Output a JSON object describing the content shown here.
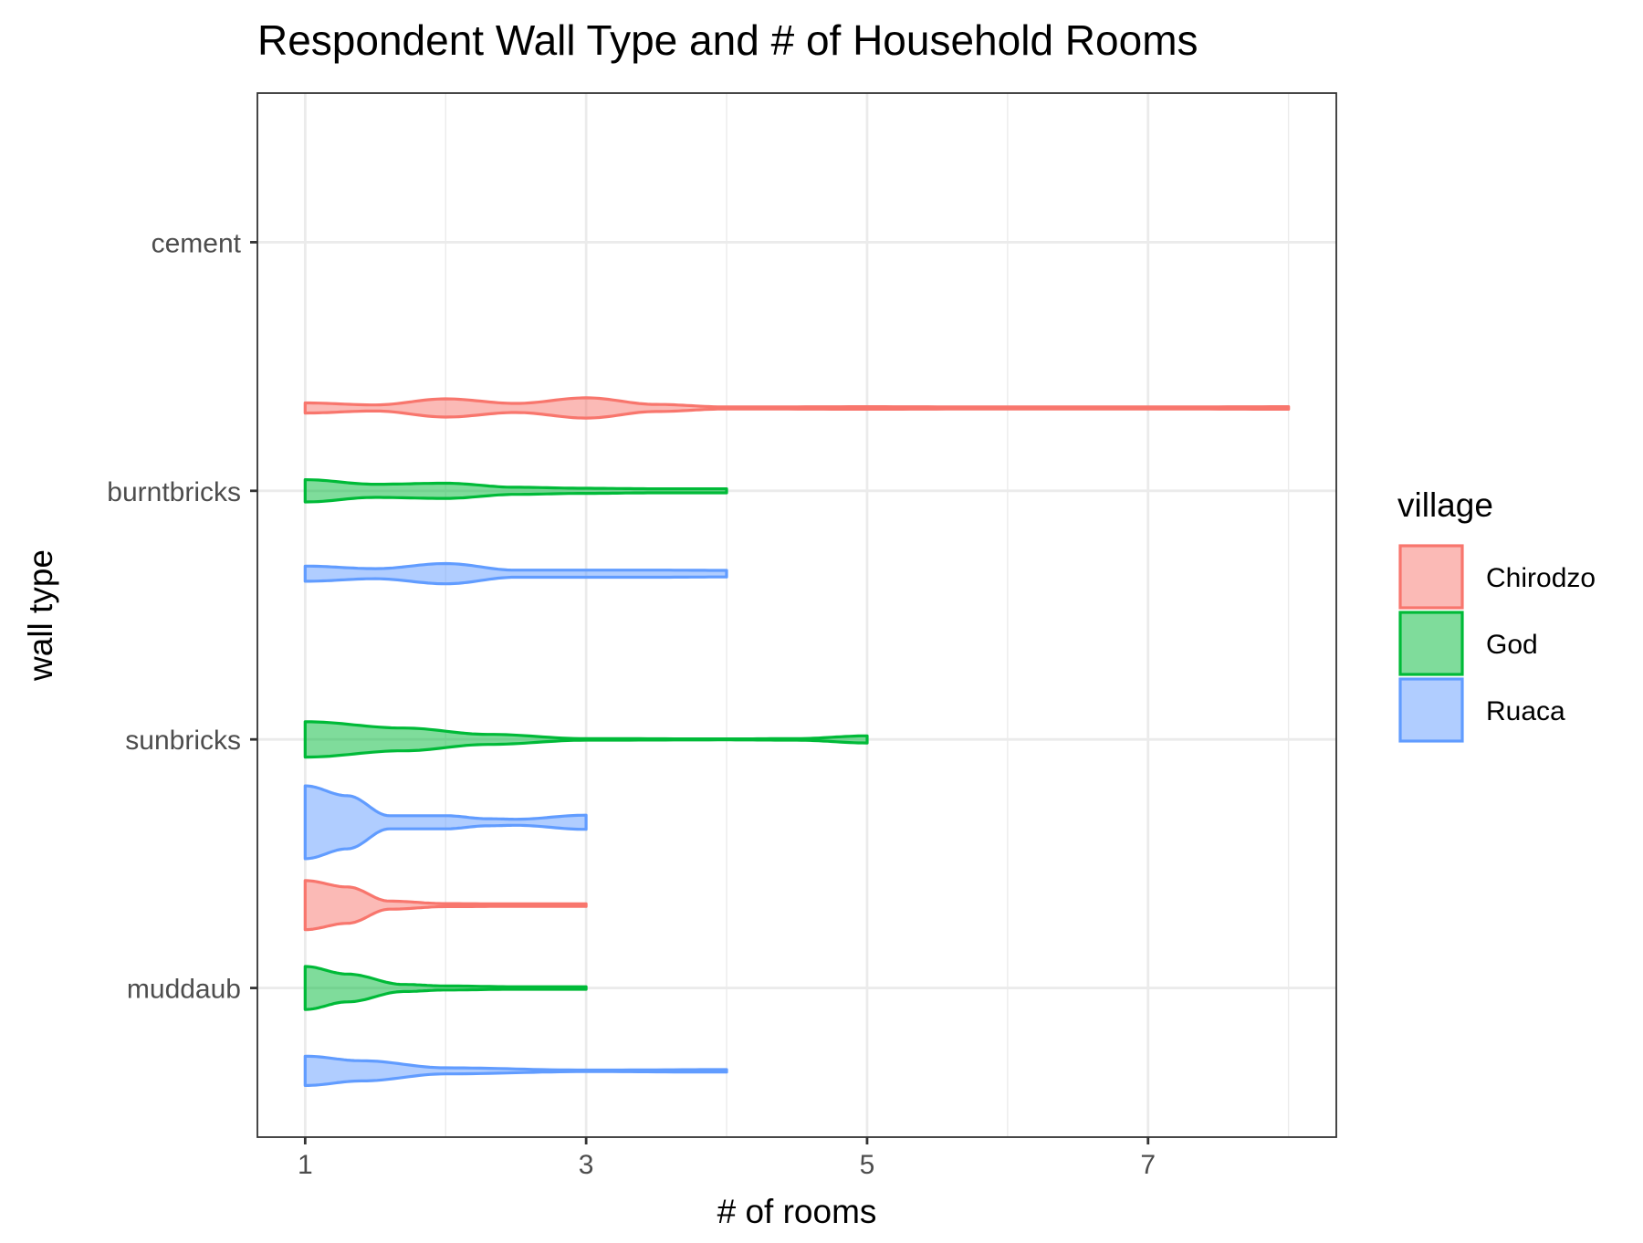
{
  "chart_data": {
    "type": "violin",
    "orientation": "horizontal",
    "title": "Respondent Wall Type and # of Household Rooms",
    "xlabel": "# of rooms",
    "ylabel": "wall type",
    "xlim": [
      0.66,
      8.34
    ],
    "x_ticks": [
      "1",
      "3",
      "5",
      "7"
    ],
    "x_tick_values": [
      1,
      3,
      5,
      7
    ],
    "categories": [
      "muddaub",
      "sunbricks",
      "burntbricks",
      "cement"
    ],
    "grid": true,
    "legend": {
      "title": "village",
      "position": "right",
      "entries": [
        "Chirodzo",
        "God",
        "Ruaca"
      ]
    },
    "series": [
      {
        "name": "Chirodzo",
        "stroke": "#F8766D",
        "fill": "#F8766D",
        "violins": [
          {
            "category": "muddaub",
            "profile": [
              [
                1.0,
                0.97
              ],
              [
                1.3,
                0.72
              ],
              [
                1.6,
                0.16
              ],
              [
                2.0,
                0.06
              ],
              [
                2.5,
                0.05
              ],
              [
                3.0,
                0.05
              ]
            ]
          },
          {
            "category": "burntbricks",
            "profile": [
              [
                1.0,
                0.2
              ],
              [
                1.5,
                0.12
              ],
              [
                2.0,
                0.36
              ],
              [
                2.5,
                0.18
              ],
              [
                3.0,
                0.4
              ],
              [
                3.5,
                0.14
              ],
              [
                4.0,
                0.04
              ],
              [
                5.0,
                0.05
              ],
              [
                6.0,
                0.04
              ],
              [
                7.0,
                0.04
              ],
              [
                8.0,
                0.05
              ]
            ]
          }
        ]
      },
      {
        "name": "God",
        "stroke": "#00BA38",
        "fill": "#00BA38",
        "violins": [
          {
            "category": "muddaub",
            "profile": [
              [
                1.0,
                0.85
              ],
              [
                1.3,
                0.55
              ],
              [
                1.7,
                0.14
              ],
              [
                2.0,
                0.08
              ],
              [
                2.5,
                0.05
              ],
              [
                3.0,
                0.05
              ]
            ]
          },
          {
            "category": "sunbricks",
            "profile": [
              [
                1.0,
                0.7
              ],
              [
                1.7,
                0.45
              ],
              [
                2.3,
                0.2
              ],
              [
                3.0,
                0.03
              ],
              [
                4.0,
                0.02
              ],
              [
                4.5,
                0.03
              ],
              [
                5.0,
                0.14
              ]
            ]
          },
          {
            "category": "burntbricks",
            "profile": [
              [
                1.0,
                0.44
              ],
              [
                1.5,
                0.26
              ],
              [
                2.0,
                0.3
              ],
              [
                2.5,
                0.14
              ],
              [
                3.0,
                0.1
              ],
              [
                3.5,
                0.08
              ],
              [
                4.0,
                0.08
              ]
            ]
          }
        ]
      },
      {
        "name": "Ruaca",
        "stroke": "#619CFF",
        "fill": "#619CFF",
        "violins": [
          {
            "category": "muddaub",
            "profile": [
              [
                1.0,
                0.58
              ],
              [
                1.4,
                0.4
              ],
              [
                2.0,
                0.12
              ],
              [
                3.0,
                0.03
              ],
              [
                4.0,
                0.05
              ]
            ]
          },
          {
            "category": "sunbricks",
            "profile": [
              [
                1.0,
                1.44
              ],
              [
                1.3,
                1.05
              ],
              [
                1.6,
                0.26
              ],
              [
                2.0,
                0.26
              ],
              [
                2.3,
                0.14
              ],
              [
                2.5,
                0.12
              ],
              [
                3.0,
                0.28
              ]
            ]
          },
          {
            "category": "burntbricks",
            "profile": [
              [
                1.0,
                0.3
              ],
              [
                1.5,
                0.2
              ],
              [
                2.0,
                0.4
              ],
              [
                2.5,
                0.14
              ],
              [
                3.0,
                0.14
              ],
              [
                3.5,
                0.14
              ],
              [
                4.0,
                0.13
              ]
            ]
          }
        ]
      }
    ]
  }
}
